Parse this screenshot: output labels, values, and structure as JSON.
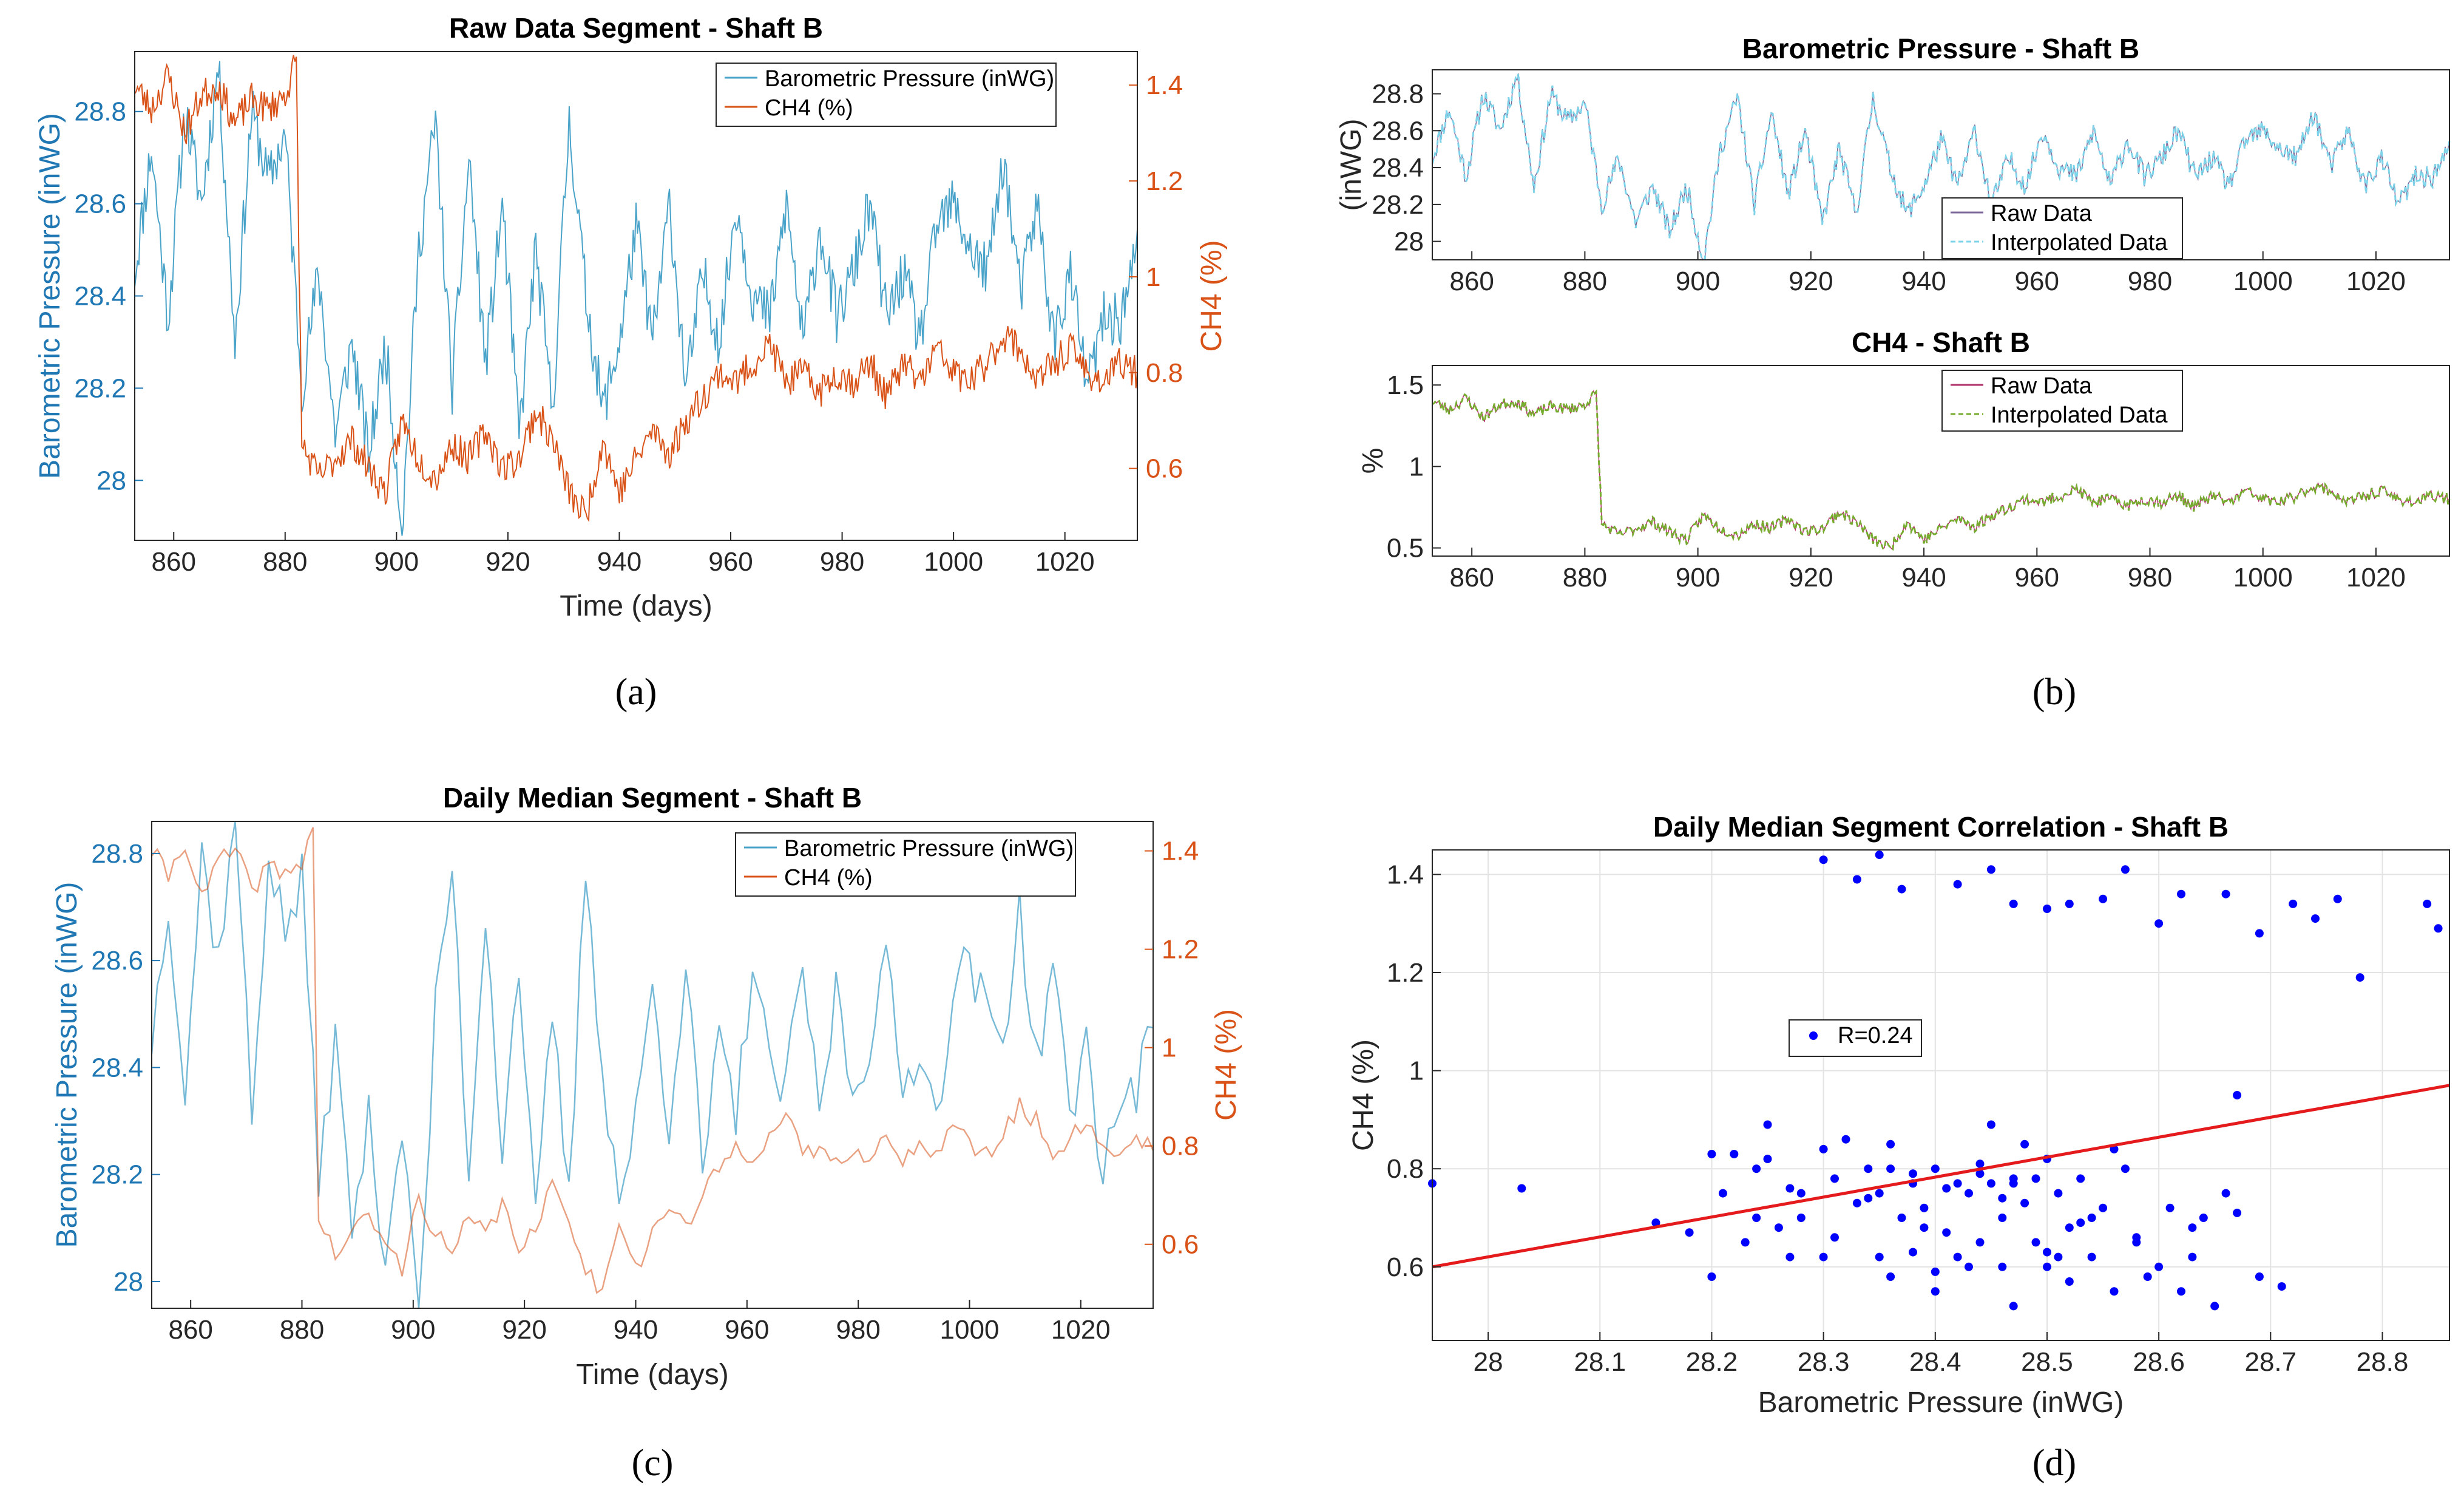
{
  "captions": [
    "(a)",
    "(b)",
    "(c)",
    "(d)"
  ],
  "colors": {
    "pressure": "#4aa3c9",
    "ch4": "#d95319",
    "interp_blue": "#7fd4ea",
    "interp_green": "#77ac30",
    "raw_ch4": "#b0306a",
    "raw_pressure": "#7e6a9a",
    "scatter": "#0000ff",
    "fit": "#e41a1c",
    "left_axis": "#1f77b4",
    "right_axis": "#d95319"
  },
  "chart_data": [
    {
      "id": "a",
      "type": "line",
      "title": "Raw Data Segment - Shaft B",
      "xlabel": "Time (days)",
      "ylabel_left": "Barometric Pressure (inWG)",
      "ylabel_right": "CH4 (%)",
      "xlim": [
        853,
        1033
      ],
      "ylim_left": [
        27.87,
        28.93
      ],
      "ylim_right": [
        0.45,
        1.47
      ],
      "x_ticks": [
        "860",
        "880",
        "900",
        "920",
        "940",
        "960",
        "980",
        "1000",
        "1020"
      ],
      "y_ticks_left": [
        "28",
        "28.2",
        "28.4",
        "28.6",
        "28.8"
      ],
      "y_ticks_right": [
        "0.6",
        "0.8",
        "1",
        "1.2",
        "1.4"
      ],
      "legend": [
        "Barometric Pressure (inWG)",
        "CH4 (%)"
      ],
      "legend_position": "top-right",
      "series": [
        {
          "name": "Barometric Pressure (inWG)",
          "axis": "left",
          "x": [
            853,
            856,
            859,
            862,
            865,
            868,
            871,
            874,
            877,
            880,
            883,
            886,
            889,
            892,
            895,
            898,
            901,
            904,
            907,
            910,
            913,
            916,
            919,
            922,
            925,
            928,
            931,
            934,
            937,
            940,
            943,
            946,
            949,
            952,
            955,
            958,
            961,
            964,
            967,
            970,
            973,
            976,
            979,
            982,
            985,
            988,
            991,
            994,
            997,
            1000,
            1003,
            1006,
            1009,
            1012,
            1015,
            1018,
            1021,
            1024,
            1027,
            1030,
            1033
          ],
          "values": [
            28.45,
            28.72,
            28.35,
            28.8,
            28.6,
            28.9,
            28.3,
            28.8,
            28.65,
            28.75,
            28.2,
            28.45,
            28.1,
            28.3,
            28.05,
            28.3,
            27.9,
            28.5,
            28.78,
            28.2,
            28.7,
            28.25,
            28.6,
            28.1,
            28.5,
            28.15,
            28.78,
            28.4,
            28.15,
            28.3,
            28.55,
            28.3,
            28.6,
            28.2,
            28.45,
            28.3,
            28.6,
            28.4,
            28.35,
            28.6,
            28.3,
            28.55,
            28.35,
            28.45,
            28.6,
            28.35,
            28.45,
            28.3,
            28.55,
            28.6,
            28.5,
            28.45,
            28.7,
            28.4,
            28.6,
            28.3,
            28.45,
            28.2,
            28.35,
            28.35,
            28.5
          ]
        },
        {
          "name": "CH4 (%)",
          "axis": "right",
          "x": [
            853,
            856,
            859,
            862,
            865,
            868,
            871,
            874,
            877,
            880,
            882,
            883,
            886,
            889,
            892,
            895,
            898,
            901,
            904,
            907,
            910,
            913,
            916,
            919,
            922,
            925,
            928,
            931,
            934,
            937,
            940,
            943,
            946,
            949,
            952,
            955,
            958,
            961,
            964,
            967,
            970,
            973,
            976,
            979,
            982,
            985,
            988,
            991,
            994,
            997,
            1000,
            1003,
            1006,
            1009,
            1012,
            1015,
            1018,
            1021,
            1024,
            1027,
            1030,
            1033
          ],
          "values": [
            1.4,
            1.35,
            1.42,
            1.3,
            1.38,
            1.4,
            1.32,
            1.37,
            1.35,
            1.38,
            1.45,
            0.65,
            0.58,
            0.62,
            0.66,
            0.6,
            0.55,
            0.7,
            0.62,
            0.58,
            0.65,
            0.62,
            0.68,
            0.6,
            0.62,
            0.72,
            0.66,
            0.55,
            0.5,
            0.66,
            0.55,
            0.62,
            0.68,
            0.63,
            0.7,
            0.75,
            0.8,
            0.78,
            0.82,
            0.86,
            0.78,
            0.8,
            0.76,
            0.8,
            0.78,
            0.82,
            0.75,
            0.82,
            0.78,
            0.85,
            0.8,
            0.78,
            0.82,
            0.88,
            0.85,
            0.78,
            0.82,
            0.85,
            0.8,
            0.78,
            0.82,
            0.8
          ]
        }
      ]
    },
    {
      "id": "b1",
      "type": "line",
      "title": "Barometric Pressure - Shaft B",
      "ylabel": "(inWG)",
      "xlim": [
        853,
        1033
      ],
      "ylim": [
        27.9,
        28.93
      ],
      "x_ticks": [
        "860",
        "880",
        "900",
        "920",
        "940",
        "960",
        "980",
        "1000",
        "1020"
      ],
      "y_ticks": [
        "28",
        "28.2",
        "28.4",
        "28.6",
        "28.8"
      ],
      "legend": [
        "Raw Data",
        "Interpolated Data"
      ],
      "legend_position": "bottom-right"
    },
    {
      "id": "b2",
      "type": "line",
      "title": "CH4 - Shaft B",
      "ylabel": "%",
      "xlim": [
        853,
        1033
      ],
      "ylim": [
        0.45,
        1.62
      ],
      "x_ticks": [
        "860",
        "880",
        "900",
        "920",
        "940",
        "960",
        "980",
        "1000",
        "1020"
      ],
      "y_ticks": [
        "0.5",
        "1",
        "1.5"
      ],
      "legend": [
        "Raw Data",
        "Interpolated Data"
      ],
      "legend_position": "top-right"
    },
    {
      "id": "c",
      "type": "line",
      "title": "Daily Median Segment - Shaft B",
      "xlabel": "Time (days)",
      "ylabel_left": "Barometric Pressure (inWG)",
      "ylabel_right": "CH4 (%)",
      "xlim": [
        853,
        1033
      ],
      "ylim_left": [
        27.95,
        28.86
      ],
      "ylim_right": [
        0.47,
        1.46
      ],
      "x_ticks": [
        "860",
        "880",
        "900",
        "920",
        "940",
        "960",
        "980",
        "1000",
        "1020"
      ],
      "y_ticks_left": [
        "28",
        "28.2",
        "28.4",
        "28.6",
        "28.8"
      ],
      "y_ticks_right": [
        "0.6",
        "0.8",
        "1",
        "1.2",
        "1.4"
      ],
      "legend": [
        "Barometric Pressure (inWG)",
        "CH4 (%)"
      ],
      "legend_position": "top-right"
    },
    {
      "id": "d",
      "type": "scatter",
      "title": "Daily Median Segment Correlation - Shaft B",
      "xlabel": "Barometric Pressure (inWG)",
      "ylabel": "CH4 (%)",
      "xlim": [
        27.95,
        28.86
      ],
      "ylim": [
        0.45,
        1.45
      ],
      "grid": true,
      "x_ticks": [
        "28",
        "28.1",
        "28.2",
        "28.3",
        "28.4",
        "28.5",
        "28.6",
        "28.7",
        "28.8"
      ],
      "y_ticks": [
        "0.6",
        "0.8",
        "1",
        "1.2",
        "1.4"
      ],
      "legend": [
        "R=0.24"
      ],
      "legend_position": "center-left",
      "fit": {
        "x": [
          27.95,
          28.86
        ],
        "y": [
          0.6,
          0.97
        ]
      },
      "points": {
        "x": [
          27.95,
          28.03,
          28.15,
          28.18,
          28.2,
          28.21,
          28.22,
          28.23,
          28.24,
          28.25,
          28.25,
          28.26,
          28.27,
          28.28,
          28.28,
          28.3,
          28.3,
          28.31,
          28.32,
          28.33,
          28.34,
          28.35,
          28.35,
          28.36,
          28.36,
          28.37,
          28.38,
          28.38,
          28.39,
          28.4,
          28.4,
          28.41,
          28.42,
          28.42,
          28.43,
          28.44,
          28.44,
          28.45,
          28.45,
          28.46,
          28.46,
          28.47,
          28.47,
          28.48,
          28.48,
          28.49,
          28.5,
          28.5,
          28.51,
          28.52,
          28.52,
          28.53,
          28.54,
          28.55,
          28.56,
          28.57,
          28.58,
          28.6,
          28.61,
          28.62,
          28.63,
          28.64,
          28.65,
          28.66,
          28.67,
          28.69,
          28.71,
          28.3,
          28.33,
          28.35,
          28.37,
          28.42,
          28.45,
          28.47,
          28.5,
          28.52,
          28.55,
          28.57,
          28.6,
          28.62,
          28.66,
          28.69,
          28.72,
          28.74,
          28.76,
          28.78,
          28.84,
          28.85,
          28.2,
          28.24,
          28.27,
          28.31,
          28.34,
          28.39,
          28.41,
          28.43,
          28.46,
          28.49,
          28.51,
          28.53,
          28.56,
          28.59,
          28.63,
          28.67,
          28.36,
          28.38,
          28.4,
          28.44,
          28.47,
          28.5,
          28.54,
          28.58
        ],
        "y": [
          0.77,
          0.76,
          0.69,
          0.67,
          0.58,
          0.75,
          0.83,
          0.65,
          0.7,
          0.82,
          0.89,
          0.68,
          0.62,
          0.7,
          0.75,
          0.84,
          0.62,
          0.78,
          0.86,
          0.73,
          0.8,
          0.62,
          0.75,
          0.85,
          0.58,
          0.7,
          0.79,
          0.63,
          0.72,
          0.8,
          0.55,
          0.67,
          0.77,
          0.62,
          0.75,
          0.81,
          0.65,
          0.77,
          0.89,
          0.7,
          0.6,
          0.78,
          0.52,
          0.73,
          0.85,
          0.65,
          0.82,
          0.6,
          0.75,
          0.68,
          0.57,
          0.78,
          0.62,
          0.72,
          0.55,
          0.8,
          0.65,
          0.6,
          0.72,
          0.55,
          0.62,
          0.7,
          0.52,
          0.75,
          0.95,
          0.58,
          0.56,
          1.43,
          1.39,
          1.44,
          1.37,
          1.38,
          1.41,
          1.34,
          1.33,
          1.34,
          1.35,
          1.41,
          1.3,
          1.36,
          1.36,
          1.28,
          1.34,
          1.31,
          1.35,
          1.19,
          1.34,
          1.29,
          0.83,
          0.8,
          0.76,
          0.66,
          0.74,
          0.68,
          0.76,
          0.6,
          0.74,
          0.78,
          0.62,
          0.69,
          0.84,
          0.58,
          0.68,
          0.71,
          0.8,
          0.77,
          0.59,
          0.79,
          0.77,
          0.63,
          0.7,
          0.66
        ]
      }
    }
  ]
}
